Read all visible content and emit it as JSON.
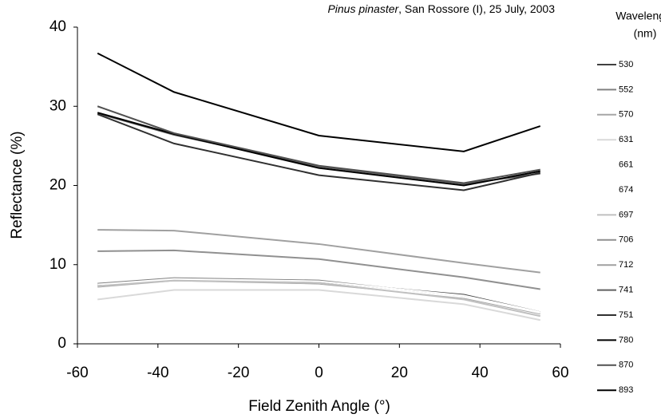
{
  "chart_data": {
    "type": "line",
    "title_italic": "Pinus pinaster",
    "title": ", San Rossore (I), 25 July, 2003",
    "x_label": "Field Zenith Angle (°)",
    "y_label": "Reflectance (%)",
    "legend_title": [
      "Wavelength",
      "(nm)"
    ],
    "legend_position": "right",
    "x": [
      -55,
      -36,
      0,
      36,
      55
    ],
    "xlim": [
      -60,
      60
    ],
    "xticks": [
      -60,
      -40,
      -20,
      0,
      20,
      40,
      60
    ],
    "ylim": [
      0,
      40
    ],
    "yticks": [
      0,
      10,
      20,
      30,
      40
    ],
    "grid": false,
    "series": [
      {
        "name": "530",
        "color": "#404040",
        "values": [
          7.4,
          8.1,
          7.8,
          6.2,
          4.0
        ]
      },
      {
        "name": "552",
        "color": "#808080",
        "values": [
          7.6,
          8.3,
          8.0,
          6.0,
          3.9
        ]
      },
      {
        "name": "570",
        "color": "#a6a6a6",
        "values": [
          7.2,
          8.0,
          7.6,
          5.8,
          3.8
        ]
      },
      {
        "name": "631",
        "color": "#d9d9d9",
        "values": [
          5.6,
          6.8,
          6.8,
          5.0,
          3.0
        ]
      },
      {
        "name": "661",
        "color": "#ffffff",
        "values": [
          7.5,
          8.2,
          7.9,
          6.1,
          4.0
        ]
      },
      {
        "name": "674",
        "color": "#ffffff",
        "values": [
          7.3,
          8.1,
          7.7,
          5.9,
          3.9
        ]
      },
      {
        "name": "697",
        "color": "#c0c0c0",
        "values": [
          7.3,
          8.0,
          7.7,
          5.6,
          3.5
        ]
      },
      {
        "name": "706",
        "color": "#909090",
        "values": [
          11.7,
          11.8,
          10.7,
          8.4,
          6.9
        ]
      },
      {
        "name": "712",
        "color": "#a0a0a0",
        "values": [
          14.4,
          14.3,
          12.6,
          10.2,
          9.0
        ]
      },
      {
        "name": "741",
        "color": "#606060",
        "values": [
          29.1,
          26.4,
          22.4,
          20.2,
          21.5
        ]
      },
      {
        "name": "751",
        "color": "#303030",
        "values": [
          29.0,
          25.3,
          21.3,
          19.4,
          21.6
        ]
      },
      {
        "name": "780",
        "color": "#000000",
        "values": [
          29.2,
          26.5,
          22.2,
          20.0,
          21.8
        ]
      },
      {
        "name": "870",
        "color": "#505050",
        "values": [
          30.0,
          26.6,
          22.5,
          20.3,
          22.0
        ]
      },
      {
        "name": "893",
        "color": "#000000",
        "values": [
          36.7,
          31.8,
          26.3,
          24.3,
          27.5
        ]
      }
    ]
  }
}
